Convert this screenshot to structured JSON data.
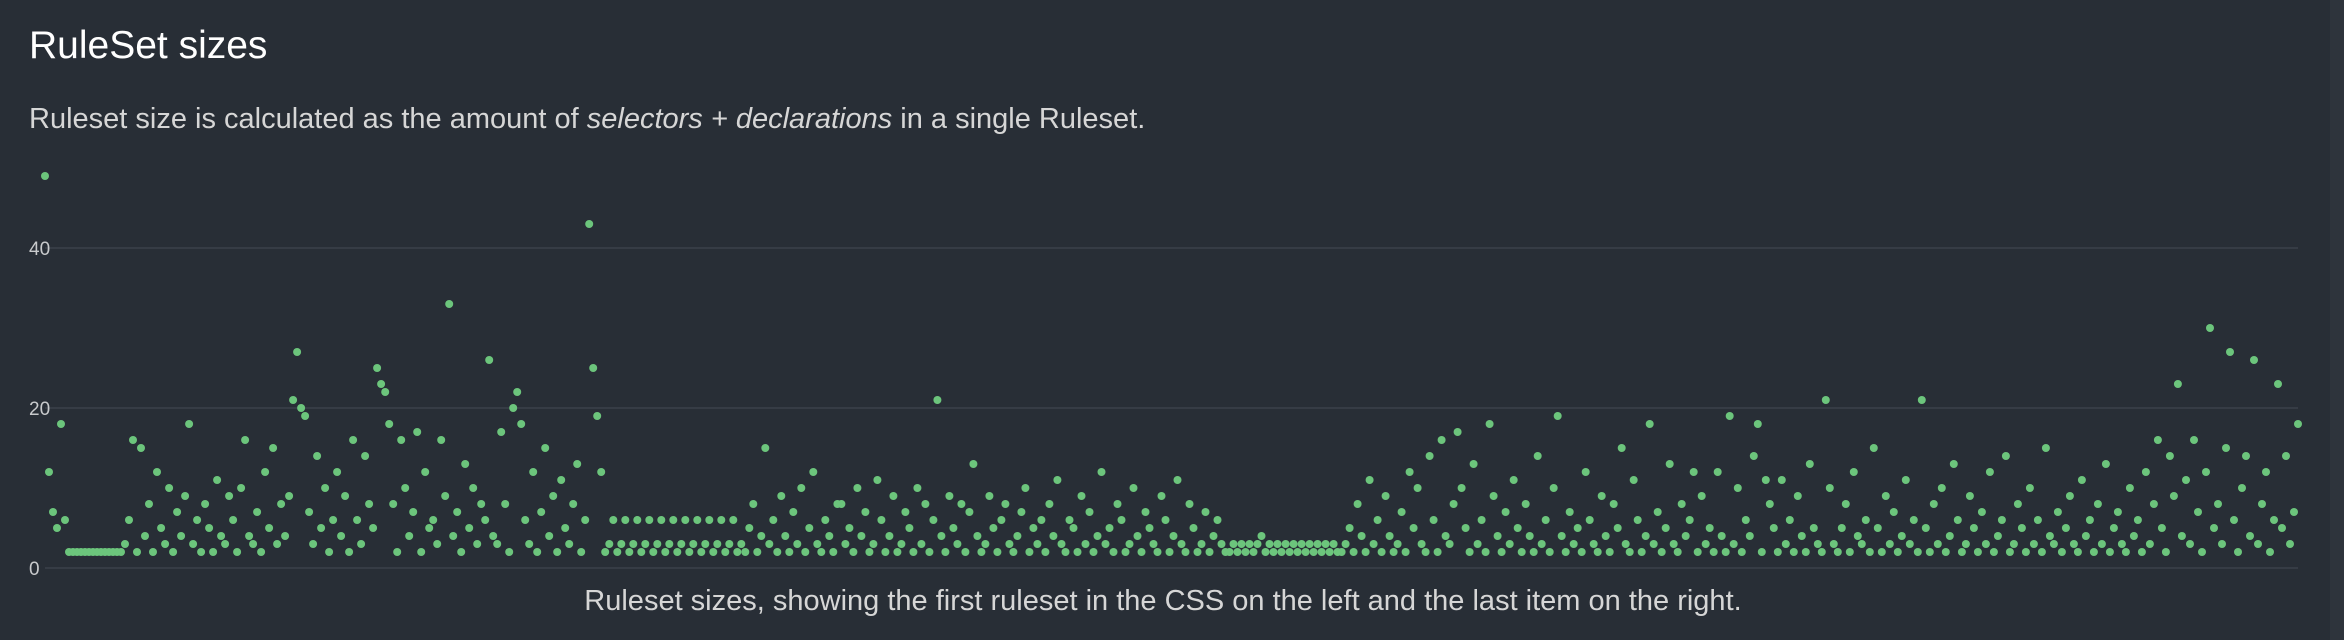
{
  "title": "RuleSet sizes",
  "description": {
    "before": "Ruleset size is calculated as the amount of ",
    "emphasis": "selectors + declarations",
    "after": " in a single Ruleset."
  },
  "caption": "Ruleset sizes, showing the first ruleset in the CSS on the left and the last item on the right.",
  "colors": {
    "background": "#282e36",
    "point": "#6cc57c",
    "grid": "#363c45"
  },
  "chart_data": {
    "type": "scatter",
    "title": "",
    "xlabel": "",
    "ylabel": "",
    "ylim": [
      0,
      49
    ],
    "y_ticks": [
      "0",
      "20",
      "40"
    ],
    "grid": true,
    "x_order": "ruleset order in the CSS, first on the left",
    "values": [
      49,
      12,
      7,
      5,
      18,
      6,
      2,
      2,
      2,
      2,
      2,
      2,
      2,
      2,
      2,
      2,
      2,
      2,
      2,
      2,
      3,
      6,
      16,
      2,
      15,
      4,
      8,
      2,
      12,
      5,
      3,
      10,
      2,
      7,
      4,
      9,
      18,
      3,
      6,
      2,
      8,
      5,
      2,
      11,
      4,
      3,
      9,
      6,
      2,
      10,
      16,
      4,
      3,
      7,
      2,
      12,
      5,
      15,
      3,
      8,
      4,
      9,
      21,
      27,
      20,
      19,
      7,
      3,
      14,
      5,
      10,
      2,
      6,
      12,
      4,
      9,
      2,
      16,
      6,
      3,
      14,
      8,
      5,
      25,
      23,
      22,
      18,
      8,
      2,
      16,
      10,
      4,
      7,
      17,
      2,
      12,
      5,
      6,
      3,
      16,
      9,
      33,
      4,
      7,
      2,
      13,
      5,
      10,
      3,
      8,
      6,
      26,
      4,
      3,
      17,
      8,
      2,
      20,
      22,
      18,
      6,
      3,
      12,
      2,
      7,
      15,
      4,
      9,
      2,
      11,
      5,
      3,
      8,
      13,
      2,
      6,
      43,
      25,
      19,
      12,
      2,
      3,
      6,
      2,
      3,
      6,
      2,
      3,
      6,
      2,
      3,
      6,
      2,
      3,
      6,
      2,
      3,
      6,
      2,
      3,
      6,
      2,
      3,
      6,
      2,
      3,
      6,
      2,
      3,
      6,
      2,
      3,
      6,
      2,
      3,
      2,
      5,
      8,
      2,
      4,
      15,
      3,
      6,
      2,
      9,
      4,
      2,
      7,
      3,
      10,
      2,
      5,
      12,
      3,
      2,
      6,
      4,
      2,
      8,
      8,
      3,
      5,
      2,
      10,
      4,
      7,
      2,
      3,
      11,
      6,
      2,
      4,
      9,
      2,
      3,
      7,
      5,
      2,
      10,
      3,
      8,
      2,
      6,
      21,
      4,
      2,
      9,
      5,
      3,
      8,
      2,
      7,
      13,
      4,
      2,
      3,
      9,
      5,
      2,
      6,
      8,
      3,
      2,
      4,
      7,
      10,
      2,
      5,
      3,
      6,
      2,
      8,
      4,
      11,
      3,
      2,
      6,
      5,
      2,
      9,
      3,
      7,
      2,
      4,
      12,
      3,
      5,
      2,
      8,
      6,
      2,
      3,
      10,
      4,
      2,
      7,
      5,
      3,
      2,
      9,
      6,
      2,
      4,
      11,
      3,
      2,
      8,
      5,
      2,
      3,
      7,
      2,
      4,
      6,
      3,
      2,
      2,
      3,
      2,
      3,
      2,
      3,
      2,
      3,
      4,
      2,
      3,
      2,
      3,
      2,
      3,
      2,
      3,
      2,
      3,
      2,
      3,
      2,
      3,
      2,
      3,
      2,
      3,
      2,
      2,
      3,
      5,
      2,
      8,
      4,
      2,
      11,
      3,
      6,
      2,
      9,
      4,
      2,
      3,
      7,
      2,
      12,
      5,
      10,
      3,
      2,
      14,
      6,
      2,
      16,
      4,
      3,
      8,
      17,
      10,
      5,
      2,
      13,
      3,
      6,
      2,
      18,
      9,
      4,
      2,
      7,
      3,
      11,
      5,
      2,
      8,
      4,
      2,
      14,
      3,
      6,
      2,
      10,
      19,
      4,
      2,
      7,
      3,
      5,
      2,
      12,
      6,
      3,
      2,
      9,
      4,
      2,
      8,
      5,
      15,
      3,
      2,
      11,
      6,
      2,
      4,
      18,
      3,
      7,
      2,
      5,
      13,
      3,
      2,
      8,
      4,
      6,
      12,
      2,
      9,
      3,
      5,
      2,
      12,
      4,
      2,
      19,
      3,
      10,
      2,
      6,
      4,
      14,
      18,
      2,
      11,
      8,
      5,
      2,
      11,
      3,
      6,
      2,
      9,
      4,
      2,
      13,
      5,
      3,
      2,
      21,
      10,
      3,
      2,
      5,
      8,
      2,
      12,
      4,
      3,
      6,
      2,
      15,
      5,
      2,
      9,
      3,
      7,
      2,
      4,
      11,
      3,
      6,
      2,
      21,
      5,
      2,
      8,
      3,
      10,
      2,
      4,
      13,
      6,
      2,
      3,
      9,
      5,
      2,
      7,
      3,
      12,
      2,
      4,
      6,
      14,
      2,
      3,
      8,
      5,
      2,
      10,
      3,
      6,
      2,
      15,
      4,
      3,
      7,
      2,
      5,
      9,
      3,
      2,
      11,
      4,
      6,
      2,
      8,
      3,
      13,
      2,
      5,
      7,
      3,
      2,
      10,
      4,
      6,
      2,
      12,
      3,
      8,
      16,
      5,
      2,
      14,
      9,
      23,
      4,
      11,
      3,
      16,
      7,
      2,
      12,
      30,
      5,
      8,
      3,
      15,
      27,
      6,
      2,
      10,
      14,
      4,
      26,
      3,
      8,
      12,
      2,
      6,
      23,
      5,
      14,
      3,
      7,
      18
    ]
  }
}
